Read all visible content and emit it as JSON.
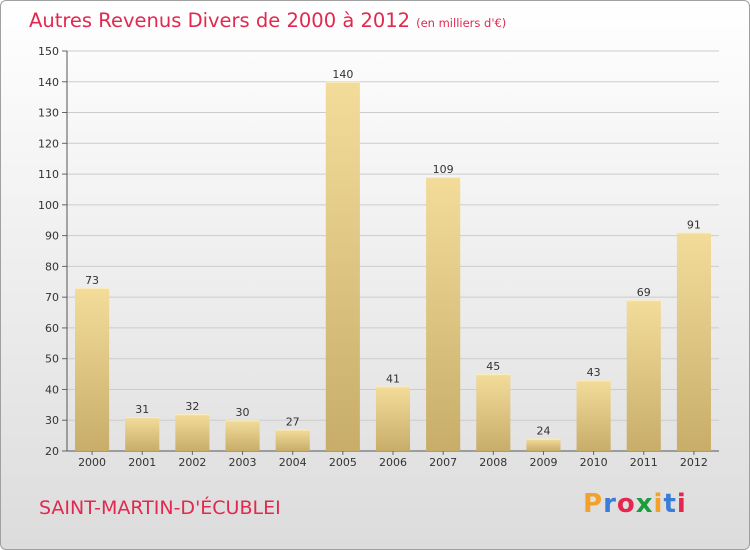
{
  "title": "Autres Revenus Divers de 2000 à 2012",
  "subtitle": "(en milliers d'€)",
  "town": "SAINT-MARTIN-D'ÉCUBLEI",
  "logo": {
    "letters": [
      "P",
      "r",
      "o",
      "x",
      "i",
      "t",
      "i"
    ],
    "colors": [
      "#f2a22a",
      "#3a7dd8",
      "#e2284f",
      "#1c9c3c",
      "#f2a22a",
      "#3a7dd8",
      "#e2284f"
    ]
  },
  "colors": {
    "bar_light": "#f3dc9a",
    "bar_dark": "#c8ad6a",
    "title": "#e2284f",
    "grid": "#cccccc"
  },
  "chart_data": {
    "type": "bar",
    "title": "Autres Revenus Divers de 2000 à 2012",
    "categories": [
      "2000",
      "2001",
      "2002",
      "2003",
      "2004",
      "2005",
      "2006",
      "2007",
      "2008",
      "2009",
      "2010",
      "2011",
      "2012"
    ],
    "values": [
      73,
      31,
      32,
      30,
      27,
      140,
      41,
      109,
      45,
      24,
      43,
      69,
      91
    ],
    "ylim": [
      20,
      150
    ],
    "yticks": [
      20,
      30,
      40,
      50,
      60,
      70,
      80,
      90,
      100,
      110,
      120,
      130,
      140,
      150
    ],
    "grid": true,
    "data_labels": true
  }
}
